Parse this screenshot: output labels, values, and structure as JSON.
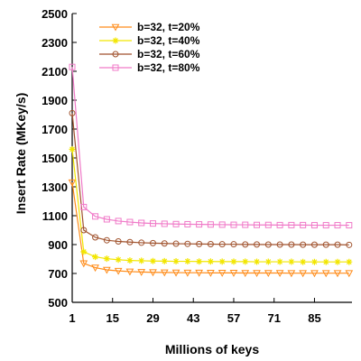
{
  "chart_data": {
    "type": "line",
    "title": "",
    "xlabel": "Millions of keys",
    "ylabel": "Insert Rate (MKey/s)",
    "xlim": [
      1,
      98
    ],
    "ylim": [
      500,
      2500
    ],
    "xticks": [
      1,
      15,
      29,
      43,
      57,
      71,
      85
    ],
    "yticks": [
      500,
      700,
      900,
      1100,
      1300,
      1500,
      1700,
      1900,
      2100,
      2300,
      2500
    ],
    "grid": false,
    "legend_position": "top-center",
    "x": [
      1,
      5,
      9,
      13,
      17,
      21,
      25,
      29,
      33,
      37,
      41,
      45,
      49,
      53,
      57,
      61,
      65,
      69,
      73,
      77,
      81,
      85,
      89,
      93,
      97
    ],
    "series": [
      {
        "name": "b=32, t=20%",
        "color": "#FF8C1A",
        "marker": "triangle-down",
        "values": [
          1330,
          770,
          740,
          725,
          718,
          713,
          710,
          708,
          707,
          706,
          705,
          705,
          704,
          704,
          704,
          703,
          703,
          703,
          703,
          702,
          702,
          702,
          702,
          702,
          702
        ]
      },
      {
        "name": "b=32, t=40%",
        "color": "#F2E600",
        "marker": "star",
        "values": [
          1560,
          850,
          815,
          802,
          795,
          790,
          788,
          786,
          785,
          784,
          784,
          783,
          783,
          782,
          782,
          782,
          781,
          781,
          781,
          781,
          780,
          780,
          780,
          780,
          780
        ]
      },
      {
        "name": "b=32, t=60%",
        "color": "#A0522D",
        "marker": "circle",
        "values": [
          1810,
          1000,
          950,
          930,
          922,
          917,
          913,
          910,
          908,
          906,
          905,
          904,
          903,
          902,
          902,
          901,
          901,
          900,
          900,
          900,
          899,
          899,
          899,
          899,
          898
        ]
      },
      {
        "name": "b=32, t=80%",
        "color": "#F07AC8",
        "marker": "square",
        "values": [
          2130,
          1160,
          1095,
          1075,
          1063,
          1056,
          1050,
          1046,
          1044,
          1042,
          1041,
          1040,
          1039,
          1038,
          1037,
          1037,
          1036,
          1036,
          1035,
          1035,
          1035,
          1034,
          1034,
          1034,
          1034
        ]
      }
    ]
  }
}
